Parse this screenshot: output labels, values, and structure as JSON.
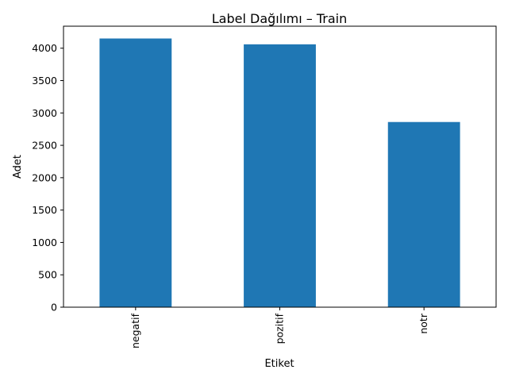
{
  "chart_data": {
    "type": "bar",
    "title": "Label Dağılımı – Train",
    "xlabel": "Etiket",
    "ylabel": "Adet",
    "categories": [
      "negatif",
      "pozitif",
      "notr"
    ],
    "values": [
      4150,
      4060,
      2860
    ],
    "ylim": [
      0,
      4340
    ],
    "yticks": [
      0,
      500,
      1000,
      1500,
      2000,
      2500,
      3000,
      3500,
      4000
    ],
    "grid": false,
    "legend": "none",
    "bar_color": "#1f77b4"
  }
}
